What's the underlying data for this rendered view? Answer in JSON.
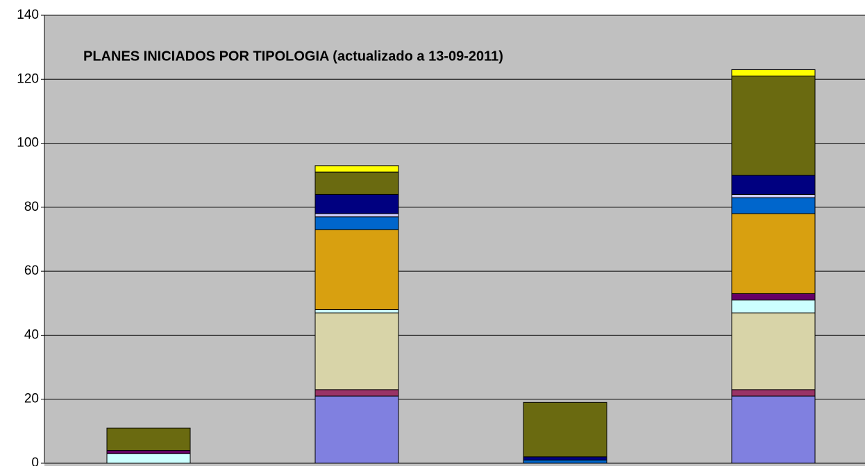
{
  "chart_data": {
    "type": "stacked_bar",
    "title": "PLANES INICIADOS POR TIPOLOGIA (actualizado a 13-09-2011)",
    "categories": [
      null,
      null,
      null,
      null
    ],
    "series": [
      {
        "color": "#8080e0",
        "values": [
          0,
          21,
          0,
          21
        ]
      },
      {
        "color": "#993366",
        "values": [
          0,
          2,
          0,
          2
        ]
      },
      {
        "color": "#d8d4a8",
        "values": [
          0,
          24,
          0,
          24
        ]
      },
      {
        "color": "#ccffff",
        "values": [
          3,
          1,
          0,
          4
        ]
      },
      {
        "color": "#660066",
        "values": [
          1,
          0,
          0,
          2
        ]
      },
      {
        "color": "#d8a010",
        "values": [
          0,
          25,
          0,
          25
        ]
      },
      {
        "color": "#0066cc",
        "values": [
          0,
          4,
          1,
          5
        ]
      },
      {
        "color": "#ccccff",
        "values": [
          0,
          1,
          0,
          1
        ]
      },
      {
        "color": "#000080",
        "values": [
          0,
          6,
          1,
          6
        ]
      },
      {
        "color": "#6a6a10",
        "values": [
          7,
          7,
          17,
          31
        ]
      },
      {
        "color": "#ffff00",
        "values": [
          0,
          2,
          0,
          2
        ]
      }
    ],
    "ylim": [
      0,
      140
    ],
    "yticks": [
      0,
      20,
      40,
      60,
      80,
      100,
      120,
      140
    ],
    "grid": true
  }
}
